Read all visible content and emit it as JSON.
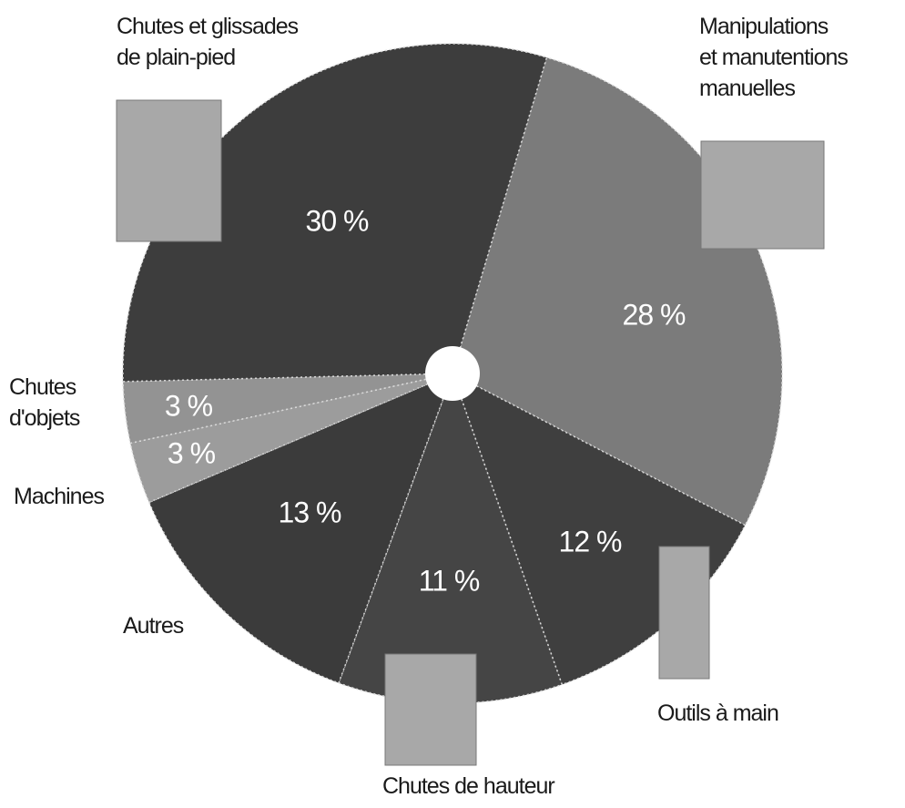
{
  "chart_data": {
    "type": "pie",
    "categories": [
      "Manipulations\net manutentions\nmanuelles",
      "Outils à main",
      "Chutes de hauteur",
      "Autres",
      "Machines",
      "Chutes\nd'objets",
      "Chutes et glissades\nde plain-pied"
    ],
    "values": [
      28,
      12,
      11,
      13,
      3,
      3,
      30
    ],
    "value_labels": [
      "28 %",
      "12 %",
      "11 %",
      "13 %",
      "3 %",
      "3 %",
      "30 %"
    ],
    "colors": [
      "#7b7b7b",
      "#3f3f3f",
      "#454545",
      "#3b3b3b",
      "#9c9c9c",
      "#939393",
      "#3d3d3d"
    ]
  }
}
